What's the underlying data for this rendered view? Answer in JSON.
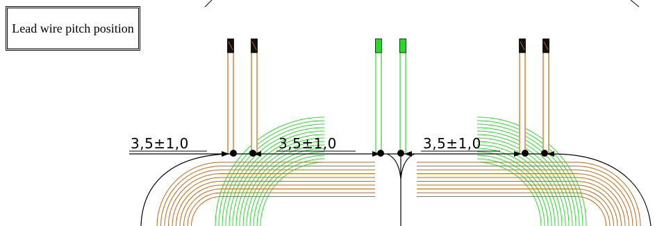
{
  "title_box": {
    "text": "Lead wire pitch position"
  },
  "dimensions": [
    {
      "label": "3,5±1,0"
    },
    {
      "label": "3,5±1,0"
    },
    {
      "label": "3,5±1,0"
    }
  ],
  "colors": {
    "outer_wire": "#c8640a",
    "inner_wire": "#22e022",
    "line": "#000000",
    "tip_dark": "#111111",
    "tip_green": "#22dd22"
  }
}
